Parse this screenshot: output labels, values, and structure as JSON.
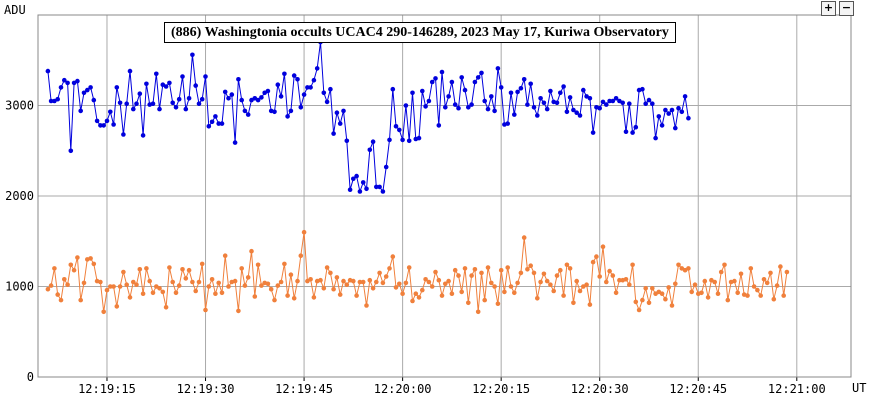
{
  "controls": {
    "zoom_in": "+",
    "zoom_out": "−"
  },
  "chart_data": {
    "type": "line",
    "title": "(886) Washingtonia occults UCAC4 290-146289, 2023 May 17, Kuriwa Observatory",
    "ylabel": "ADU",
    "xlabel": "UT",
    "ylim": [
      0,
      4000
    ],
    "yticks": [
      0,
      1000,
      2000,
      3000
    ],
    "xtick_labels": [
      "12:19:15",
      "12:19:30",
      "12:19:45",
      "12:20:00",
      "12:20:15",
      "12:20:30",
      "12:20:45",
      "12:21:00"
    ],
    "xtick_seconds": [
      15,
      30,
      45,
      60,
      75,
      90,
      105,
      120
    ],
    "x_start_seconds": 6.0,
    "x_step_seconds": 0.5,
    "grid": true,
    "colors": {
      "target": "#0000dd",
      "comparison": "#f0803c",
      "grid": "#aaaaaa"
    },
    "series": [
      {
        "color": "#0000dd",
        "values": [
          3380,
          3050,
          3050,
          3070,
          3200,
          3280,
          3250,
          2500,
          3250,
          3270,
          2940,
          3140,
          3170,
          3200,
          3060,
          2830,
          2780,
          2780,
          2830,
          2930,
          2790,
          3200,
          3030,
          2680,
          3020,
          3380,
          2960,
          3020,
          3130,
          2670,
          3240,
          3010,
          3020,
          3350,
          2960,
          3230,
          3210,
          3250,
          3030,
          2980,
          3070,
          3320,
          2960,
          3080,
          3560,
          3220,
          3020,
          3070,
          3320,
          2770,
          2820,
          2880,
          2800,
          2800,
          3150,
          3080,
          3120,
          2590,
          3290,
          3060,
          2940,
          2900,
          3060,
          3080,
          3060,
          3090,
          3140,
          3160,
          2940,
          2930,
          3230,
          3100,
          3350,
          2880,
          2940,
          3330,
          3290,
          2980,
          3120,
          3200,
          3200,
          3280,
          3410,
          3700,
          3140,
          3040,
          3180,
          2690,
          2920,
          2800,
          2940,
          2610,
          2070,
          2190,
          2220,
          2050,
          2150,
          2080,
          2510,
          2600,
          2100,
          2100,
          2050,
          2320,
          2620,
          3180,
          2770,
          2730,
          2620,
          3000,
          2610,
          3140,
          2630,
          2640,
          3160,
          2990,
          3050,
          3260,
          3300,
          2780,
          3370,
          2980,
          3100,
          3260,
          3010,
          2970,
          3310,
          3170,
          2980,
          3010,
          3260,
          3310,
          3360,
          3050,
          2960,
          3100,
          2940,
          3410,
          3200,
          2790,
          2800,
          3140,
          2900,
          3150,
          3190,
          3290,
          3010,
          3240,
          2980,
          2890,
          3080,
          3030,
          2960,
          3160,
          3040,
          3030,
          3140,
          3210,
          2930,
          3090,
          2950,
          2920,
          2890,
          3170,
          3100,
          3080,
          2700,
          2980,
          2970,
          3040,
          3010,
          3050,
          3050,
          3080,
          3050,
          3030,
          2710,
          3020,
          2700,
          2760,
          3170,
          3180,
          3020,
          3060,
          3020,
          2640,
          2880,
          2780,
          2950,
          2910,
          2950,
          2750,
          2970,
          2930,
          3100,
          2860
        ]
      },
      {
        "color": "#f0803c",
        "values": [
          970,
          1010,
          1200,
          910,
          850,
          1080,
          1020,
          1240,
          1180,
          1320,
          850,
          1040,
          1300,
          1310,
          1250,
          1060,
          1050,
          720,
          960,
          1000,
          1000,
          780,
          1000,
          1160,
          1020,
          880,
          1050,
          1020,
          1190,
          920,
          1200,
          1060,
          930,
          1000,
          980,
          940,
          770,
          1210,
          1050,
          930,
          1010,
          1190,
          1090,
          1180,
          1050,
          950,
          1050,
          1250,
          740,
          1000,
          1080,
          920,
          1040,
          930,
          1340,
          1000,
          1050,
          1060,
          730,
          1200,
          1010,
          1100,
          1390,
          890,
          1240,
          1010,
          1040,
          1030,
          970,
          850,
          1010,
          1050,
          1250,
          900,
          1130,
          870,
          1060,
          1340,
          1600,
          1060,
          1080,
          880,
          1060,
          1070,
          980,
          1210,
          1150,
          970,
          1100,
          910,
          1060,
          1020,
          1070,
          1060,
          900,
          1050,
          1050,
          790,
          1070,
          980,
          1050,
          1150,
          1040,
          1110,
          1200,
          1330,
          990,
          1030,
          920,
          1040,
          1210,
          840,
          920,
          880,
          960,
          1080,
          1050,
          1000,
          1160,
          1070,
          900,
          1030,
          1060,
          920,
          1180,
          1120,
          940,
          1200,
          820,
          1120,
          1190,
          720,
          1150,
          850,
          1210,
          1040,
          1000,
          810,
          1180,
          940,
          1210,
          1000,
          930,
          1040,
          1150,
          1540,
          1190,
          1230,
          1150,
          870,
          1050,
          1140,
          1060,
          1020,
          950,
          1120,
          1180,
          900,
          1240,
          1200,
          820,
          1060,
          950,
          1000,
          1020,
          800,
          1270,
          1330,
          1110,
          1440,
          1050,
          1170,
          1120,
          930,
          1070,
          1070,
          1080,
          1020,
          1240,
          830,
          740,
          850,
          980,
          820,
          980,
          920,
          940,
          920,
          860,
          990,
          790,
          1030,
          1240,
          1200,
          1180,
          1200,
          940,
          1020,
          920,
          930,
          1060,
          880,
          1070,
          1050,
          920,
          1160,
          1240,
          850,
          1050,
          1060,
          930,
          1140,
          910,
          900,
          1200,
          1000,
          960,
          900,
          1080,
          1040,
          1150,
          860,
          1010,
          1220,
          900,
          1160
        ]
      }
    ]
  }
}
